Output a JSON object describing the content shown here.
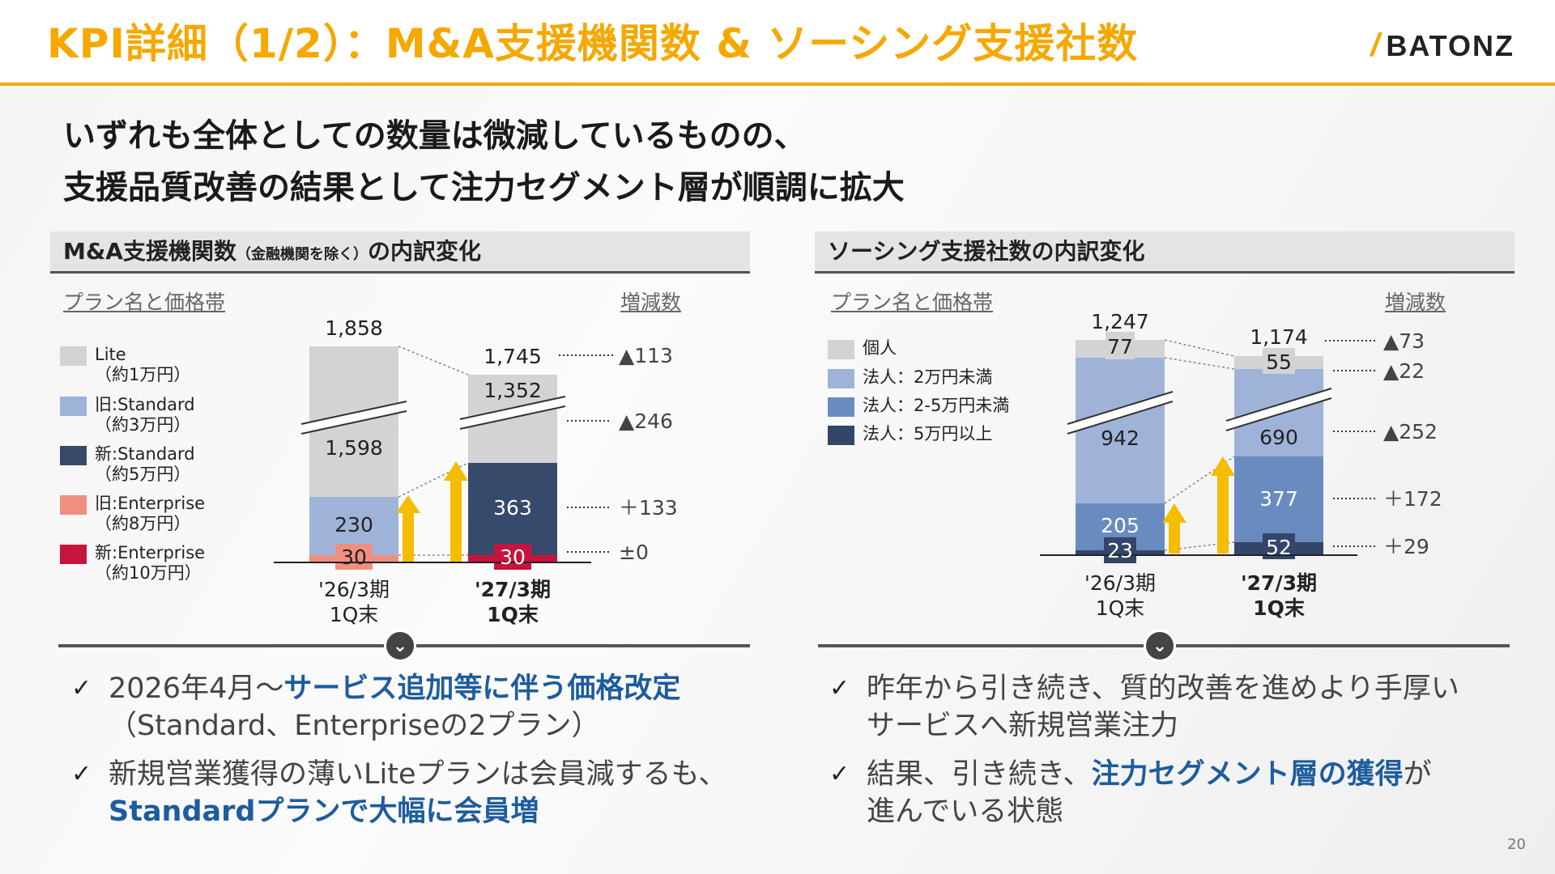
{
  "title": "KPI詳細（1/2）：M&A支援機関数 & ソーシング支援社数",
  "logo": "BATONZ",
  "headline": [
    "いずれも全体としての数量は微減しているものの、",
    "支援品質改善の結果として注力セグメント層が順調に拡大"
  ],
  "left": {
    "section_title": "M&A支援機関数",
    "section_title_small": "（金融機関を除く）",
    "section_title_suffix": "の内訳変化",
    "plan_label": "プラン名と価格帯",
    "change_label": "増減数",
    "legend": [
      {
        "label": "Lite",
        "sub": "（約1万円）",
        "color": "#d3d3d6"
      },
      {
        "label": "旧:Standard",
        "sub": "（約3万円）",
        "color": "#9fb3d8"
      },
      {
        "label": "新:Standard",
        "sub": "（約5万円）",
        "color": "#384a6b"
      },
      {
        "label": "旧:Enterprise",
        "sub": "（約8万円）",
        "color": "#f08f80"
      },
      {
        "label": "新:Enterprise",
        "sub": "（約10万円）",
        "color": "#c8143c"
      }
    ]
  },
  "right": {
    "section_title": "ソーシング支援社数の内訳変化",
    "plan_label": "プラン名と価格帯",
    "change_label": "増減数",
    "legend": [
      {
        "label": "個人",
        "color": "#d3d3d6"
      },
      {
        "label": "法人：2万円未満",
        "color": "#9fb3d8"
      },
      {
        "label": "法人：2-5万円未満",
        "color": "#6a8bbf"
      },
      {
        "label": "法人：5万円以上",
        "color": "#33466a"
      }
    ]
  },
  "chart_data": [
    {
      "type": "bar",
      "stacked": true,
      "broken_axis": true,
      "categories": [
        "'26/3期 1Q末",
        "'27/3期 1Q末"
      ],
      "series": [
        {
          "name": "旧:Enterprise",
          "values": [
            30,
            0
          ],
          "color": "#f08f80"
        },
        {
          "name": "新:Enterprise",
          "values": [
            0,
            30
          ],
          "color": "#c8143c"
        },
        {
          "name": "旧:Standard",
          "values": [
            230,
            0
          ],
          "color": "#9fb3d8"
        },
        {
          "name": "新:Standard",
          "values": [
            0,
            363
          ],
          "color": "#384a6b"
        },
        {
          "name": "Lite",
          "values": [
            1598,
            1352
          ],
          "color": "#d3d3d6"
        }
      ],
      "totals": [
        1858,
        1745
      ],
      "changes": [
        "▲113",
        "▲246",
        "＋133",
        "±0"
      ]
    },
    {
      "type": "bar",
      "stacked": true,
      "broken_axis": true,
      "categories": [
        "'26/3期 1Q末",
        "'27/3期 1Q末"
      ],
      "series": [
        {
          "name": "法人：5万円以上",
          "values": [
            23,
            52
          ],
          "color": "#33466a"
        },
        {
          "name": "法人：2-5万円未満",
          "values": [
            205,
            377
          ],
          "color": "#6a8bbf"
        },
        {
          "name": "法人：2万円未満",
          "values": [
            942,
            690
          ],
          "color": "#9fb3d8"
        },
        {
          "name": "個人",
          "values": [
            77,
            55
          ],
          "color": "#d3d3d6"
        }
      ],
      "totals": [
        1247,
        1174
      ],
      "changes": [
        "▲73",
        "▲22",
        "▲252",
        "＋172",
        "＋29"
      ]
    }
  ],
  "chart_labels": {
    "left": {
      "total_a": "1,858",
      "total_b": "1,745",
      "a_top": "1,598",
      "a_mid": "230",
      "a_bot": "30",
      "b_top": "1,352",
      "b_mid": "363",
      "b_bot": "30",
      "cat_a1": "'26/3期",
      "cat_a2": "1Q末",
      "cat_b1": "'27/3期",
      "cat_b2": "1Q末",
      "ch1": "▲113",
      "ch2": "▲246",
      "ch3": "＋133",
      "ch4": "±0"
    },
    "right": {
      "total_a": "1,247",
      "total_b": "1,174",
      "a_top": "77",
      "a_3": "942",
      "a_2": "205",
      "a_1": "23",
      "b_top": "55",
      "b_3": "690",
      "b_2": "377",
      "b_1": "52",
      "cat_a1": "'26/3期",
      "cat_a2": "1Q末",
      "cat_b1": "'27/3期",
      "cat_b2": "1Q末",
      "ch1": "▲73",
      "ch2": "▲22",
      "ch3": "▲252",
      "ch4": "＋172",
      "ch5": "＋29"
    }
  },
  "bullets_left": [
    {
      "pre": "2026年4月～",
      "em": "サービス追加等に伴う価格改定",
      "post": "",
      "line2": "（Standard、Enterpriseの2プラン）"
    },
    {
      "pre": "新規営業獲得の薄いLiteプランは会員減するも、",
      "em": "",
      "post": "",
      "line2em": "Standardプランで大幅に会員増"
    }
  ],
  "bullets_right": [
    {
      "pre": "昨年から引き続き、質的改善を進めより手厚い",
      "line2": "サービスへ新規営業注力"
    },
    {
      "pre": "結果、引き続き、",
      "em": "注力セグメント層の獲得",
      "post": "が",
      "line2": "進んでいる状態"
    }
  ],
  "page_number": "20"
}
